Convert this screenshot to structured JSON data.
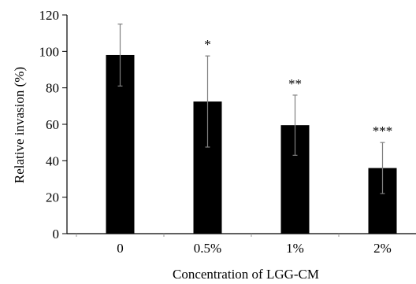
{
  "chart_data": {
    "type": "bar",
    "categories": [
      "0",
      "0.5%",
      "1%",
      "2%"
    ],
    "values": [
      98,
      72.5,
      59.5,
      36
    ],
    "errors": [
      17,
      25,
      16.5,
      14
    ],
    "significance": [
      "",
      "*",
      "**",
      "***"
    ],
    "xlabel": "Concentration of LGG-CM",
    "ylabel": "Relative invasion (%)",
    "ylim": [
      0,
      120
    ],
    "yticks": [
      "0",
      "20",
      "40",
      "60",
      "80",
      "100",
      "120"
    ],
    "bar_color": "#000000",
    "error_bar_color": "#808080",
    "grid": false,
    "legend": "none"
  }
}
